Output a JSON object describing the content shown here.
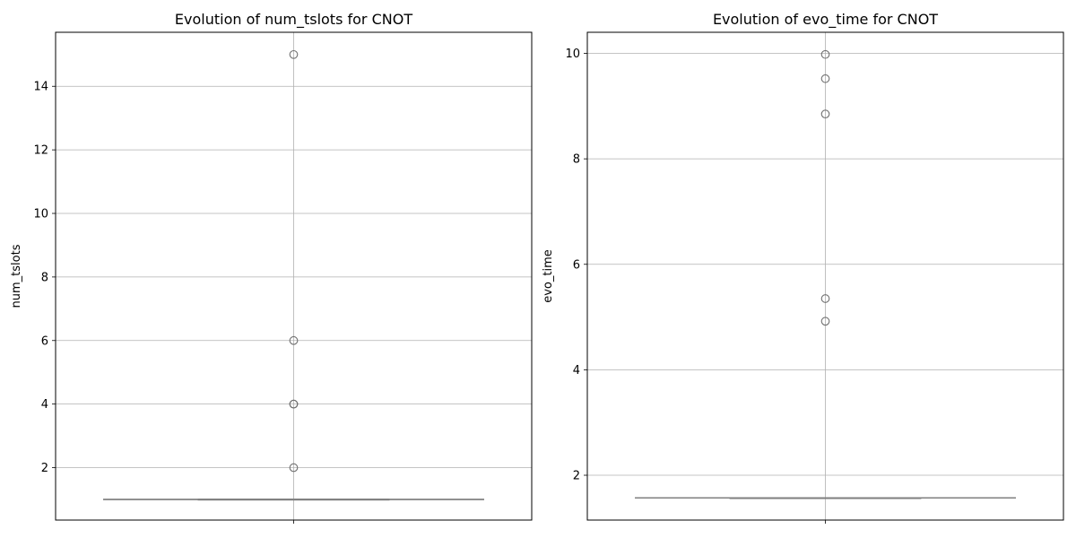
{
  "colors": {
    "grid": "#b0b0b0",
    "axes": "#000000",
    "box_line": "#808080",
    "flier_edge": "#707070"
  },
  "chart_data": [
    {
      "type": "box",
      "title": "Evolution of num_tslots for CNOT",
      "xlabel": "",
      "ylabel": "num_tslots",
      "ylim": [
        0.35,
        15.7
      ],
      "yticks": [
        2,
        4,
        6,
        8,
        10,
        12,
        14
      ],
      "grid": true,
      "box": {
        "whisker_low": 1,
        "q1": 1,
        "median": 1,
        "q3": 1,
        "whisker_high": 1
      },
      "outliers": [
        15,
        6,
        4,
        4,
        2
      ]
    },
    {
      "type": "box",
      "title": "Evolution of evo_time for CNOT",
      "xlabel": "",
      "ylabel": "evo_time",
      "ylim": [
        1.15,
        10.4
      ],
      "yticks": [
        2,
        4,
        6,
        8,
        10
      ],
      "grid": true,
      "box": {
        "whisker_low": 1.57,
        "q1": 1.57,
        "median": 1.57,
        "q3": 1.57,
        "whisker_high": 1.57
      },
      "outliers": [
        9.98,
        9.52,
        8.85,
        5.35,
        4.92
      ]
    }
  ]
}
